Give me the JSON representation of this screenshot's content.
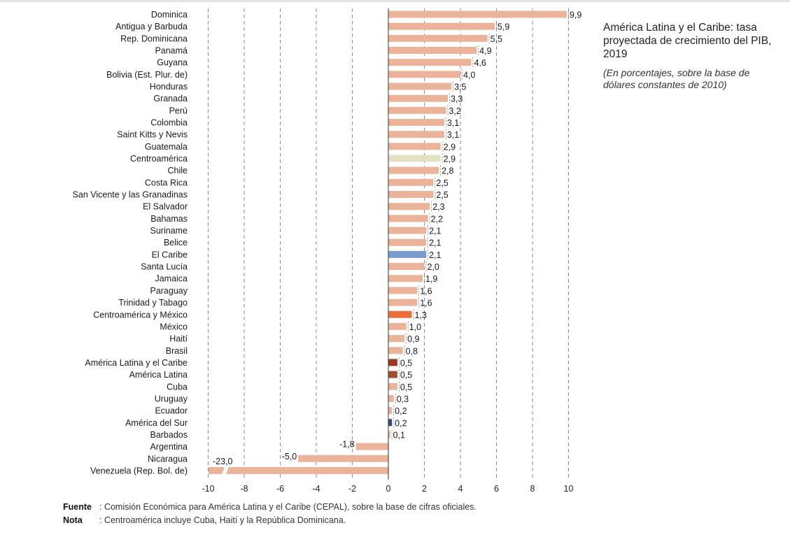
{
  "title": "América Latina y el Caribe: tasa proyectada de crecimiento del PIB, 2019",
  "subtitle": "(En porcentajes, sobre la base de dólares constantes de 2010)",
  "notes": {
    "source_label": "Fuente",
    "source_text": "Comisión Económica para América Latina y el Caribe (CEPAL), sobre la base de cifras oficiales.",
    "note_label": "Nota",
    "note_text": "Centroamérica incluye Cuba, Haití y la República Dominicana."
  },
  "chart_data": {
    "type": "bar",
    "orientation": "horizontal",
    "xlim": [
      -10,
      10
    ],
    "xticks": [
      -10,
      -8,
      -6,
      -4,
      -2,
      0,
      2,
      4,
      6,
      8,
      10
    ],
    "grid": "vertical dashed",
    "colors": {
      "default": "#eab39a",
      "Centroamérica": "#e3e1c2",
      "El Caribe": "#7a9bd0",
      "Centroamérica y México": "#ec6f3b",
      "América Latina y el Caribe": "#9e3622",
      "América Latina": "#a24b2f",
      "América del Sur": "#2f4b7c"
    },
    "categories": [
      "Dominica",
      "Antigua y Barbuda",
      "Rep. Dominicana",
      "Panamá",
      "Guyana",
      "Bolivia (Est. Plur. de)",
      "Honduras",
      "Granada",
      "Perú",
      "Colombia",
      "Saint Kitts y Nevis",
      "Guatemala",
      "Centroamérica",
      "Chile",
      "Costa Rica",
      "San Vicente y las Granadinas",
      "El Salvador",
      "Bahamas",
      "Suriname",
      "Belice",
      "El Caribe",
      "Santa Lucía",
      "Jamaica",
      "Paraguay",
      "Trinidad y Tabago",
      "Centroamérica y México",
      "México",
      "Haití",
      "Brasil",
      "América Latina y el Caribe",
      "América Latina",
      "Cuba",
      "Uruguay",
      "Ecuador",
      "América del Sur",
      "Barbados",
      "Argentina",
      "Nicaragua",
      "Venezuela (Rep. Bol. de)"
    ],
    "values": [
      9.9,
      5.9,
      5.5,
      4.9,
      4.6,
      4.0,
      3.5,
      3.3,
      3.2,
      3.1,
      3.1,
      2.9,
      2.9,
      2.8,
      2.5,
      2.5,
      2.3,
      2.2,
      2.1,
      2.1,
      2.1,
      2.0,
      1.9,
      1.6,
      1.6,
      1.3,
      1.0,
      0.9,
      0.8,
      0.5,
      0.5,
      0.5,
      0.3,
      0.2,
      0.2,
      0.1,
      -1.8,
      -5.0,
      -23.0
    ],
    "value_labels": [
      "9,9",
      "5,9",
      "5,5",
      "4,9",
      "4,6",
      "4,0",
      "3,5",
      "3,3",
      "3,2",
      "3,1",
      "3,1",
      "2,9",
      "2,9",
      "2,8",
      "2,5",
      "2,5",
      "2,3",
      "2,2",
      "2,1",
      "2,1",
      "2,1",
      "2,0",
      "1,9",
      "1,6",
      "1,6",
      "1,3",
      "1,0",
      "0,9",
      "0,8",
      "0,5",
      "0,5",
      "0,5",
      "0,3",
      "0,2",
      "0,2",
      "0,1",
      "-1,8",
      "-5,0",
      "-23,0"
    ],
    "axis_break": "Venezuela (Rep. Bol. de)"
  }
}
